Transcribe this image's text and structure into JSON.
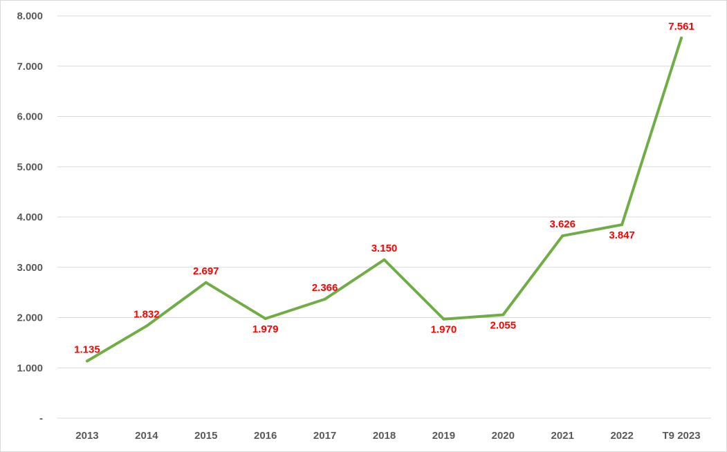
{
  "chart_data": {
    "type": "line",
    "title": "",
    "xlabel": "",
    "ylabel": "",
    "categories": [
      "2013",
      "2014",
      "2015",
      "2016",
      "2017",
      "2018",
      "2019",
      "2020",
      "2021",
      "2022",
      "T9 2023"
    ],
    "series": [
      {
        "values": [
          1135,
          1832,
          2697,
          1979,
          2366,
          3150,
          1970,
          2055,
          3626,
          3847,
          7561
        ],
        "labels": [
          "1.135",
          "1.832",
          "2.697",
          "1.979",
          "2.366",
          "3.150",
          "1.970",
          "2.055",
          "3.626",
          "3.847",
          "7.561"
        ],
        "label_position": [
          "above",
          "above",
          "above",
          "below",
          "above",
          "above",
          "below",
          "below",
          "above",
          "below",
          "above"
        ],
        "color": "#70ad47",
        "label_color": "#ff0000"
      }
    ],
    "ylim": [
      0,
      8000
    ],
    "y_ticks": [
      0,
      1000,
      2000,
      3000,
      4000,
      5000,
      6000,
      7000,
      8000
    ],
    "y_tick_labels": [
      "-",
      "1.000",
      "2.000",
      "3.000",
      "4.000",
      "5.000",
      "6.000",
      "7.000",
      "8.000"
    ],
    "grid": true,
    "legend": "none",
    "colors": {
      "grid": "#d9d9d9",
      "tick_text": "#595959"
    }
  }
}
